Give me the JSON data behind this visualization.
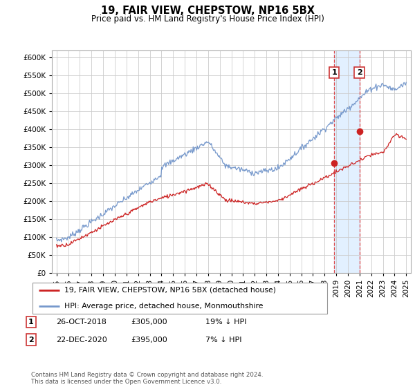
{
  "title": "19, FAIR VIEW, CHEPSTOW, NP16 5BX",
  "subtitle": "Price paid vs. HM Land Registry's House Price Index (HPI)",
  "ylim": [
    0,
    620000
  ],
  "yticks": [
    0,
    50000,
    100000,
    150000,
    200000,
    250000,
    300000,
    350000,
    400000,
    450000,
    500000,
    550000,
    600000
  ],
  "hpi_color": "#7799cc",
  "price_color": "#cc2222",
  "sale1_date_x": 2018.82,
  "sale1_price": 305000,
  "sale2_date_x": 2020.98,
  "sale2_price": 395000,
  "legend_red_label": "19, FAIR VIEW, CHEPSTOW, NP16 5BX (detached house)",
  "legend_blue_label": "HPI: Average price, detached house, Monmouthshire",
  "table_row1": [
    "1",
    "26-OCT-2018",
    "£305,000",
    "19% ↓ HPI"
  ],
  "table_row2": [
    "2",
    "22-DEC-2020",
    "£395,000",
    "7% ↓ HPI"
  ],
  "footer": "Contains HM Land Registry data © Crown copyright and database right 2024.\nThis data is licensed under the Open Government Licence v3.0.",
  "background_color": "#ffffff",
  "grid_color": "#cccccc",
  "shade_x1": 2018.82,
  "shade_x2": 2020.98,
  "xlim_left": 1994.6,
  "xlim_right": 2025.4
}
